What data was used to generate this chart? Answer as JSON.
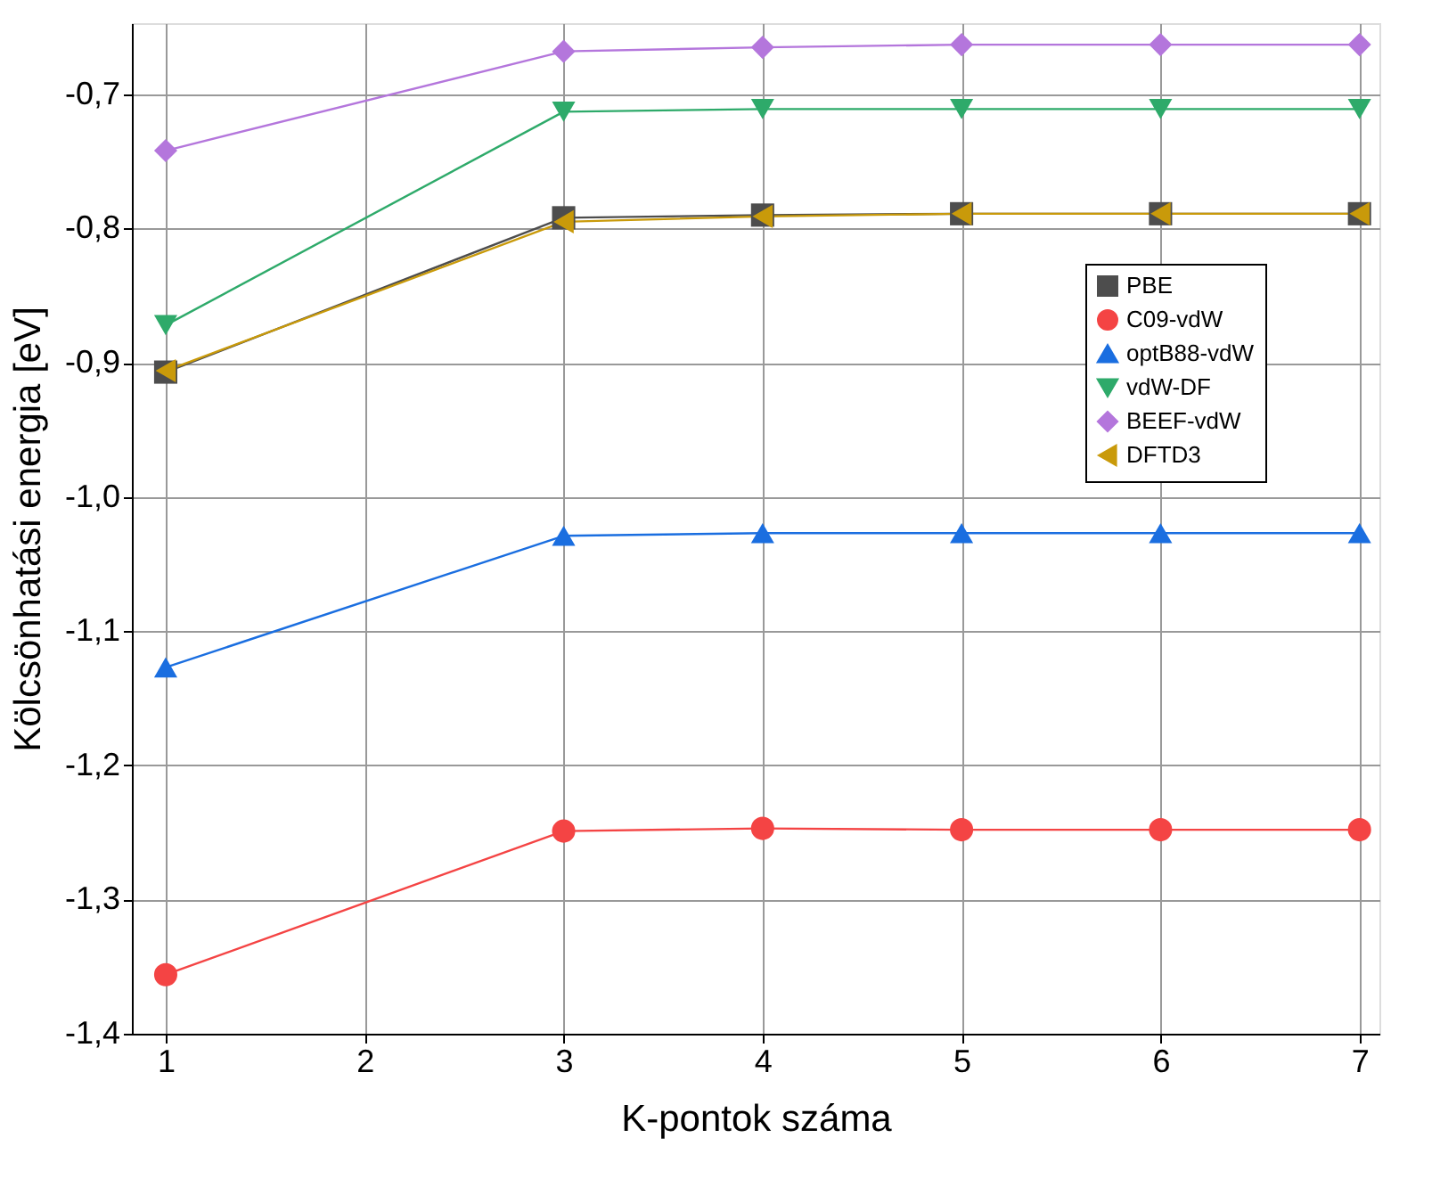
{
  "chart_data": {
    "type": "line",
    "xlabel": "K-pontok száma",
    "ylabel": "Kölcsönhatási energia [eV]",
    "x": [
      1,
      3,
      4,
      5,
      6,
      7
    ],
    "xlim": [
      0.83,
      7.1
    ],
    "xticks": [
      1,
      2,
      3,
      4,
      5,
      6,
      7
    ],
    "ylim": [
      -1.4,
      -0.647
    ],
    "yticks": [
      {
        "value": -1.4,
        "label": "-1,4"
      },
      {
        "value": -1.3,
        "label": "-1,3"
      },
      {
        "value": -1.2,
        "label": "-1,2"
      },
      {
        "value": -1.1,
        "label": "-1,1"
      },
      {
        "value": -1.0,
        "label": "-1,0"
      },
      {
        "value": -0.9,
        "label": "-0,9"
      },
      {
        "value": -0.8,
        "label": "-0,8"
      },
      {
        "value": -0.7,
        "label": "-0,7"
      }
    ],
    "grid": true,
    "legend": "top right",
    "line_style": "solid",
    "series": [
      {
        "name": "PBE",
        "color": "#4d4d4d",
        "marker": "square",
        "values": [
          -0.907,
          -0.792,
          -0.79,
          -0.789,
          -0.789,
          -0.789
        ]
      },
      {
        "name": "C09-vdW",
        "color": "#f44444",
        "marker": "circle",
        "values": [
          -1.356,
          -1.249,
          -1.247,
          -1.248,
          -1.248,
          -1.248
        ]
      },
      {
        "name": "optB88-vdW",
        "color": "#1a6ee0",
        "marker": "triangle-up",
        "values": [
          -1.127,
          -1.029,
          -1.027,
          -1.027,
          -1.027,
          -1.027
        ]
      },
      {
        "name": "vdW-DF",
        "color": "#2eaa6a",
        "marker": "triangle-down",
        "values": [
          -0.872,
          -0.713,
          -0.711,
          -0.711,
          -0.711,
          -0.711
        ]
      },
      {
        "name": "BEEF-vdW",
        "color": "#b476dc",
        "marker": "diamond",
        "values": [
          -0.742,
          -0.668,
          -0.665,
          -0.663,
          -0.663,
          -0.663
        ]
      },
      {
        "name": "DFTD3",
        "color": "#c99a0a",
        "marker": "triangle-left",
        "values": [
          -0.906,
          -0.795,
          -0.791,
          -0.789,
          -0.789,
          -0.789
        ]
      }
    ]
  }
}
